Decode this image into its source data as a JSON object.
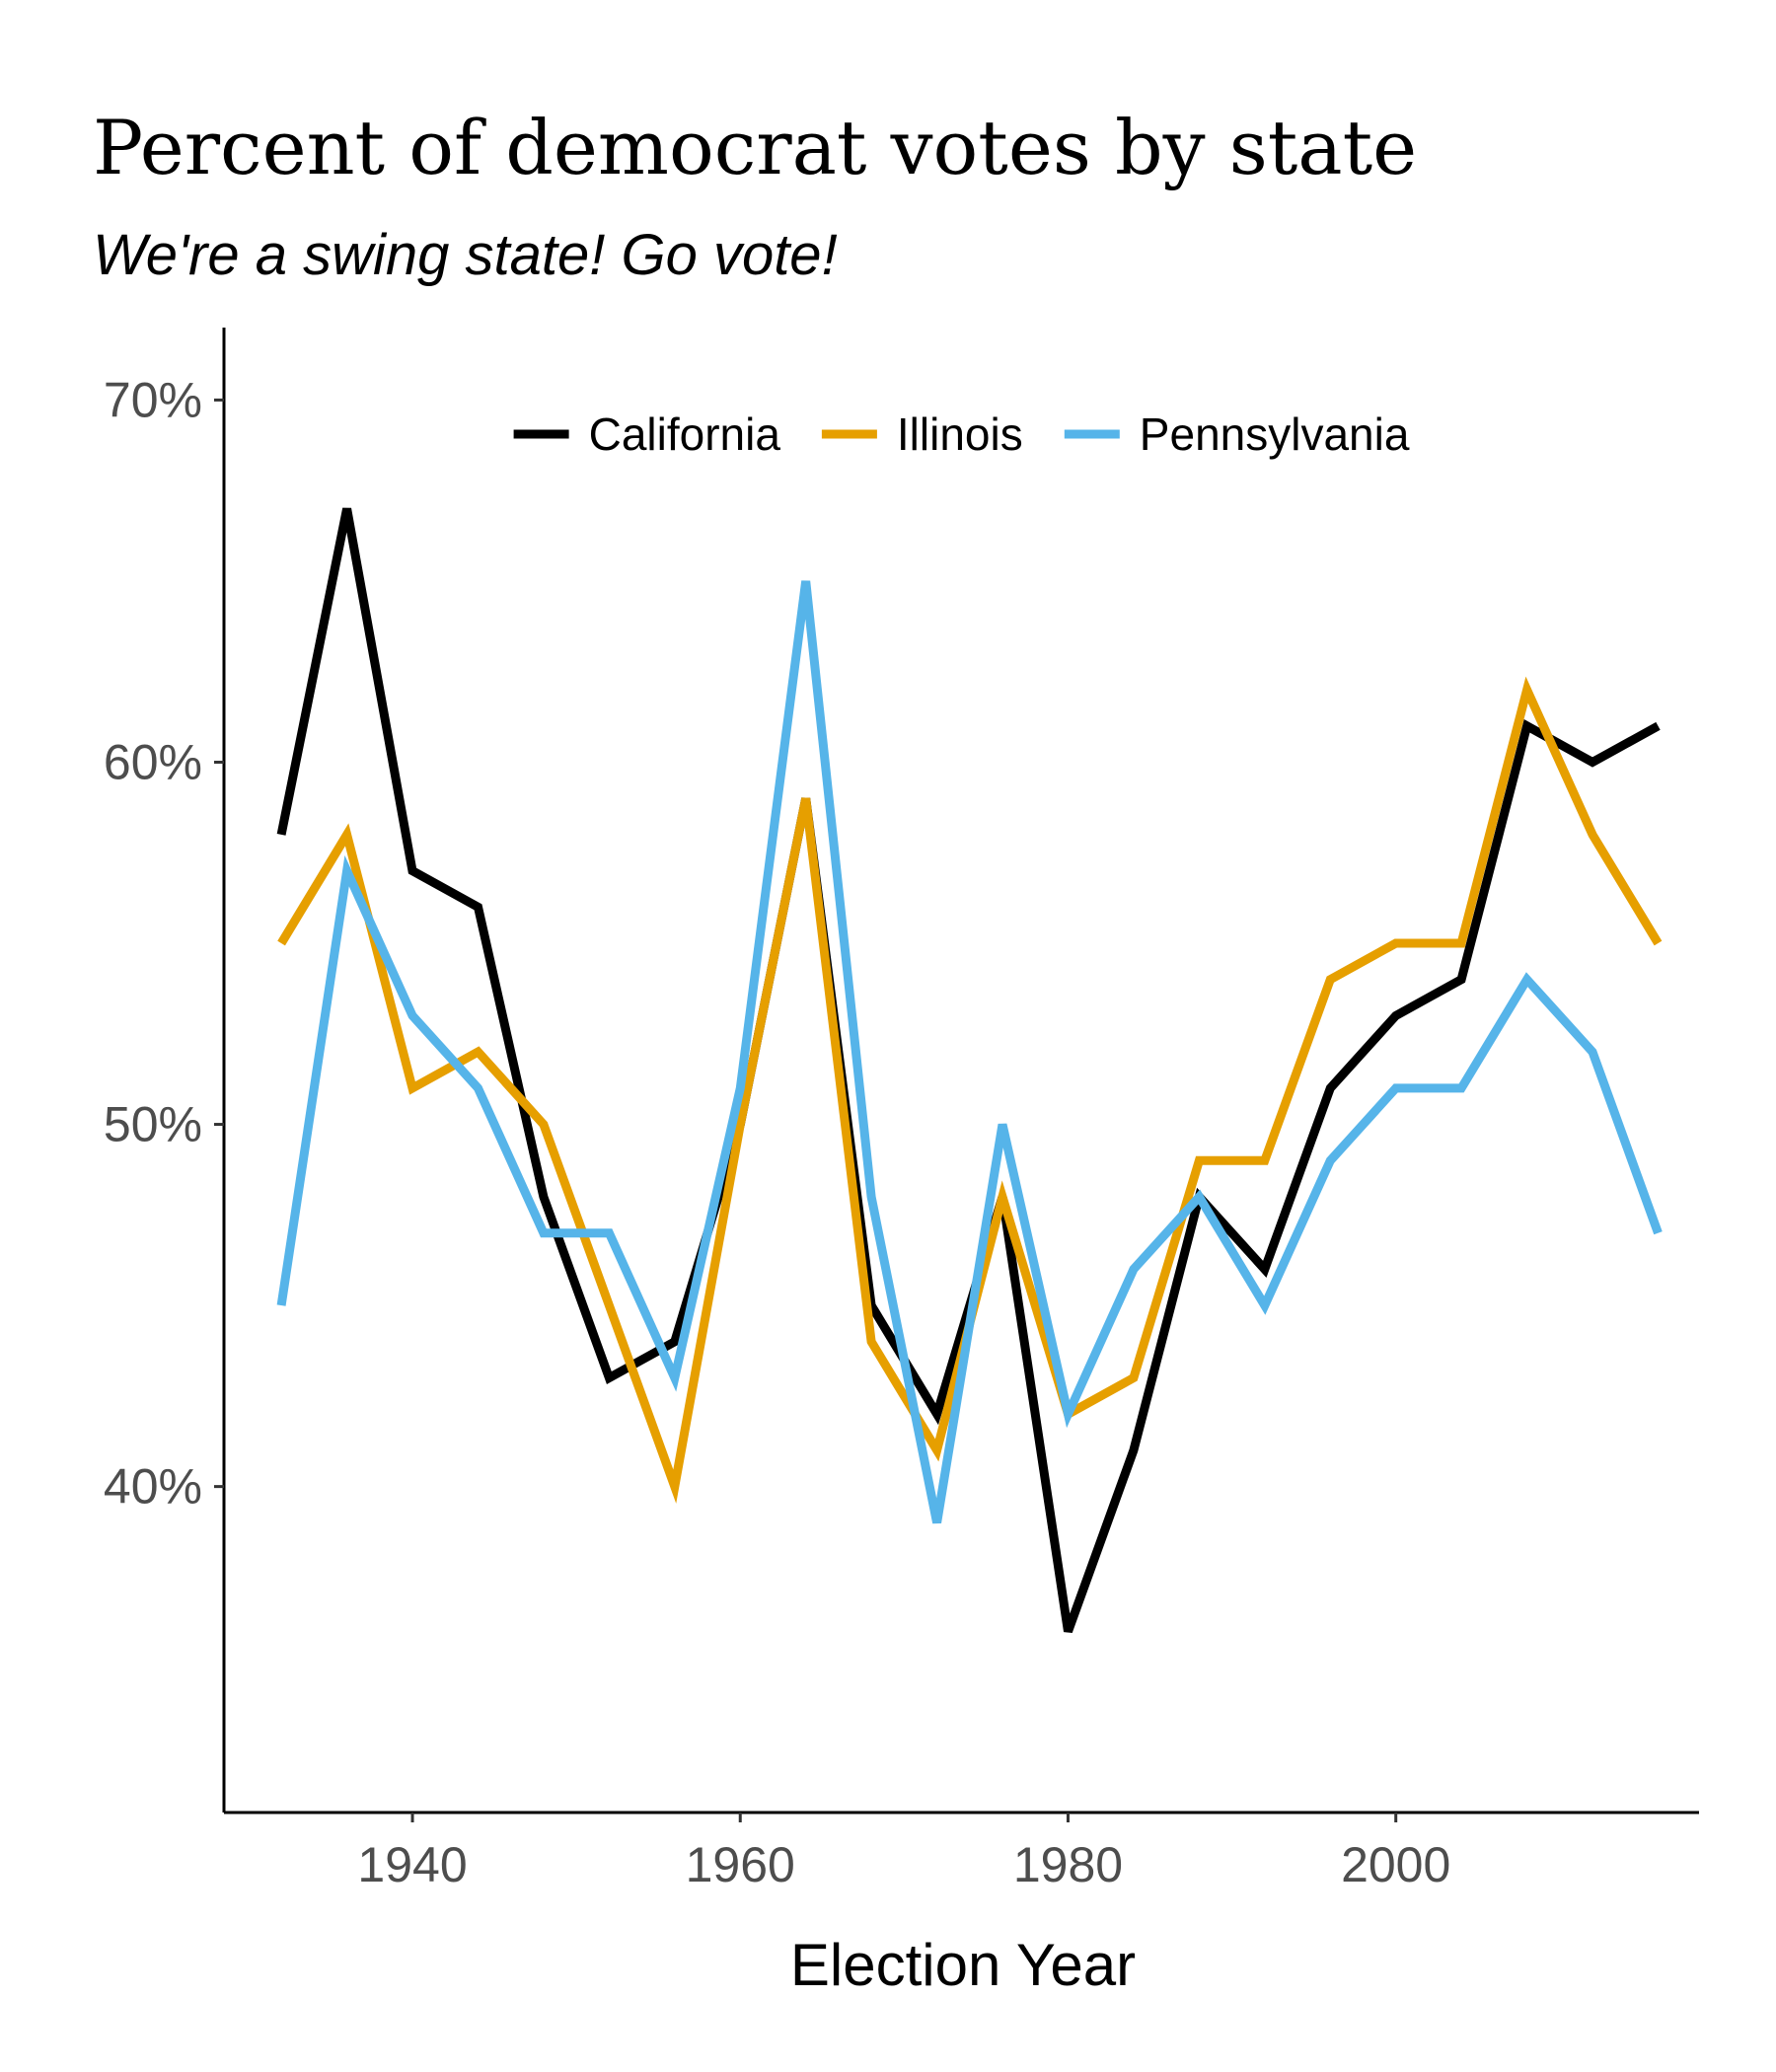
{
  "chart_data": {
    "type": "line",
    "title": "Percent of democrat votes by state",
    "subtitle": "We're a swing state! Go vote!",
    "xlabel": "Election Year",
    "ylabel": "",
    "xlim": [
      1928.5,
      2018.5
    ],
    "ylim": [
      31,
      72
    ],
    "x_ticks": [
      1940,
      1960,
      1980,
      2000
    ],
    "x_tick_labels": [
      "1940",
      "1960",
      "1980",
      "2000"
    ],
    "y_ticks": [
      40,
      50,
      60,
      70
    ],
    "y_tick_labels": [
      "40%",
      "50%",
      "60%",
      "70%"
    ],
    "grid": false,
    "legend_position": "top",
    "x": [
      1932,
      1936,
      1940,
      1944,
      1948,
      1952,
      1956,
      1960,
      1964,
      1968,
      1972,
      1976,
      1980,
      1984,
      1988,
      1992,
      1996,
      2000,
      2004,
      2008,
      2012,
      2016
    ],
    "series": [
      {
        "name": "California",
        "color": "#000000",
        "values": [
          58,
          67,
          57,
          56,
          48,
          43,
          44,
          50,
          59,
          45,
          42,
          48,
          36,
          41,
          48,
          46,
          51,
          53,
          54,
          61,
          60,
          61
        ]
      },
      {
        "name": "Illinois",
        "color": "#E69F00",
        "values": [
          55,
          58,
          51,
          52,
          50,
          45,
          40,
          50,
          59,
          44,
          41,
          48,
          42,
          43,
          49,
          49,
          54,
          55,
          55,
          62,
          58,
          55
        ]
      },
      {
        "name": "Pennsylvania",
        "color": "#56B4E9",
        "values": [
          45,
          57,
          53,
          51,
          47,
          47,
          43,
          51,
          65,
          48,
          39,
          50,
          42,
          46,
          48,
          45,
          49,
          51,
          51,
          54,
          52,
          47
        ]
      }
    ]
  }
}
